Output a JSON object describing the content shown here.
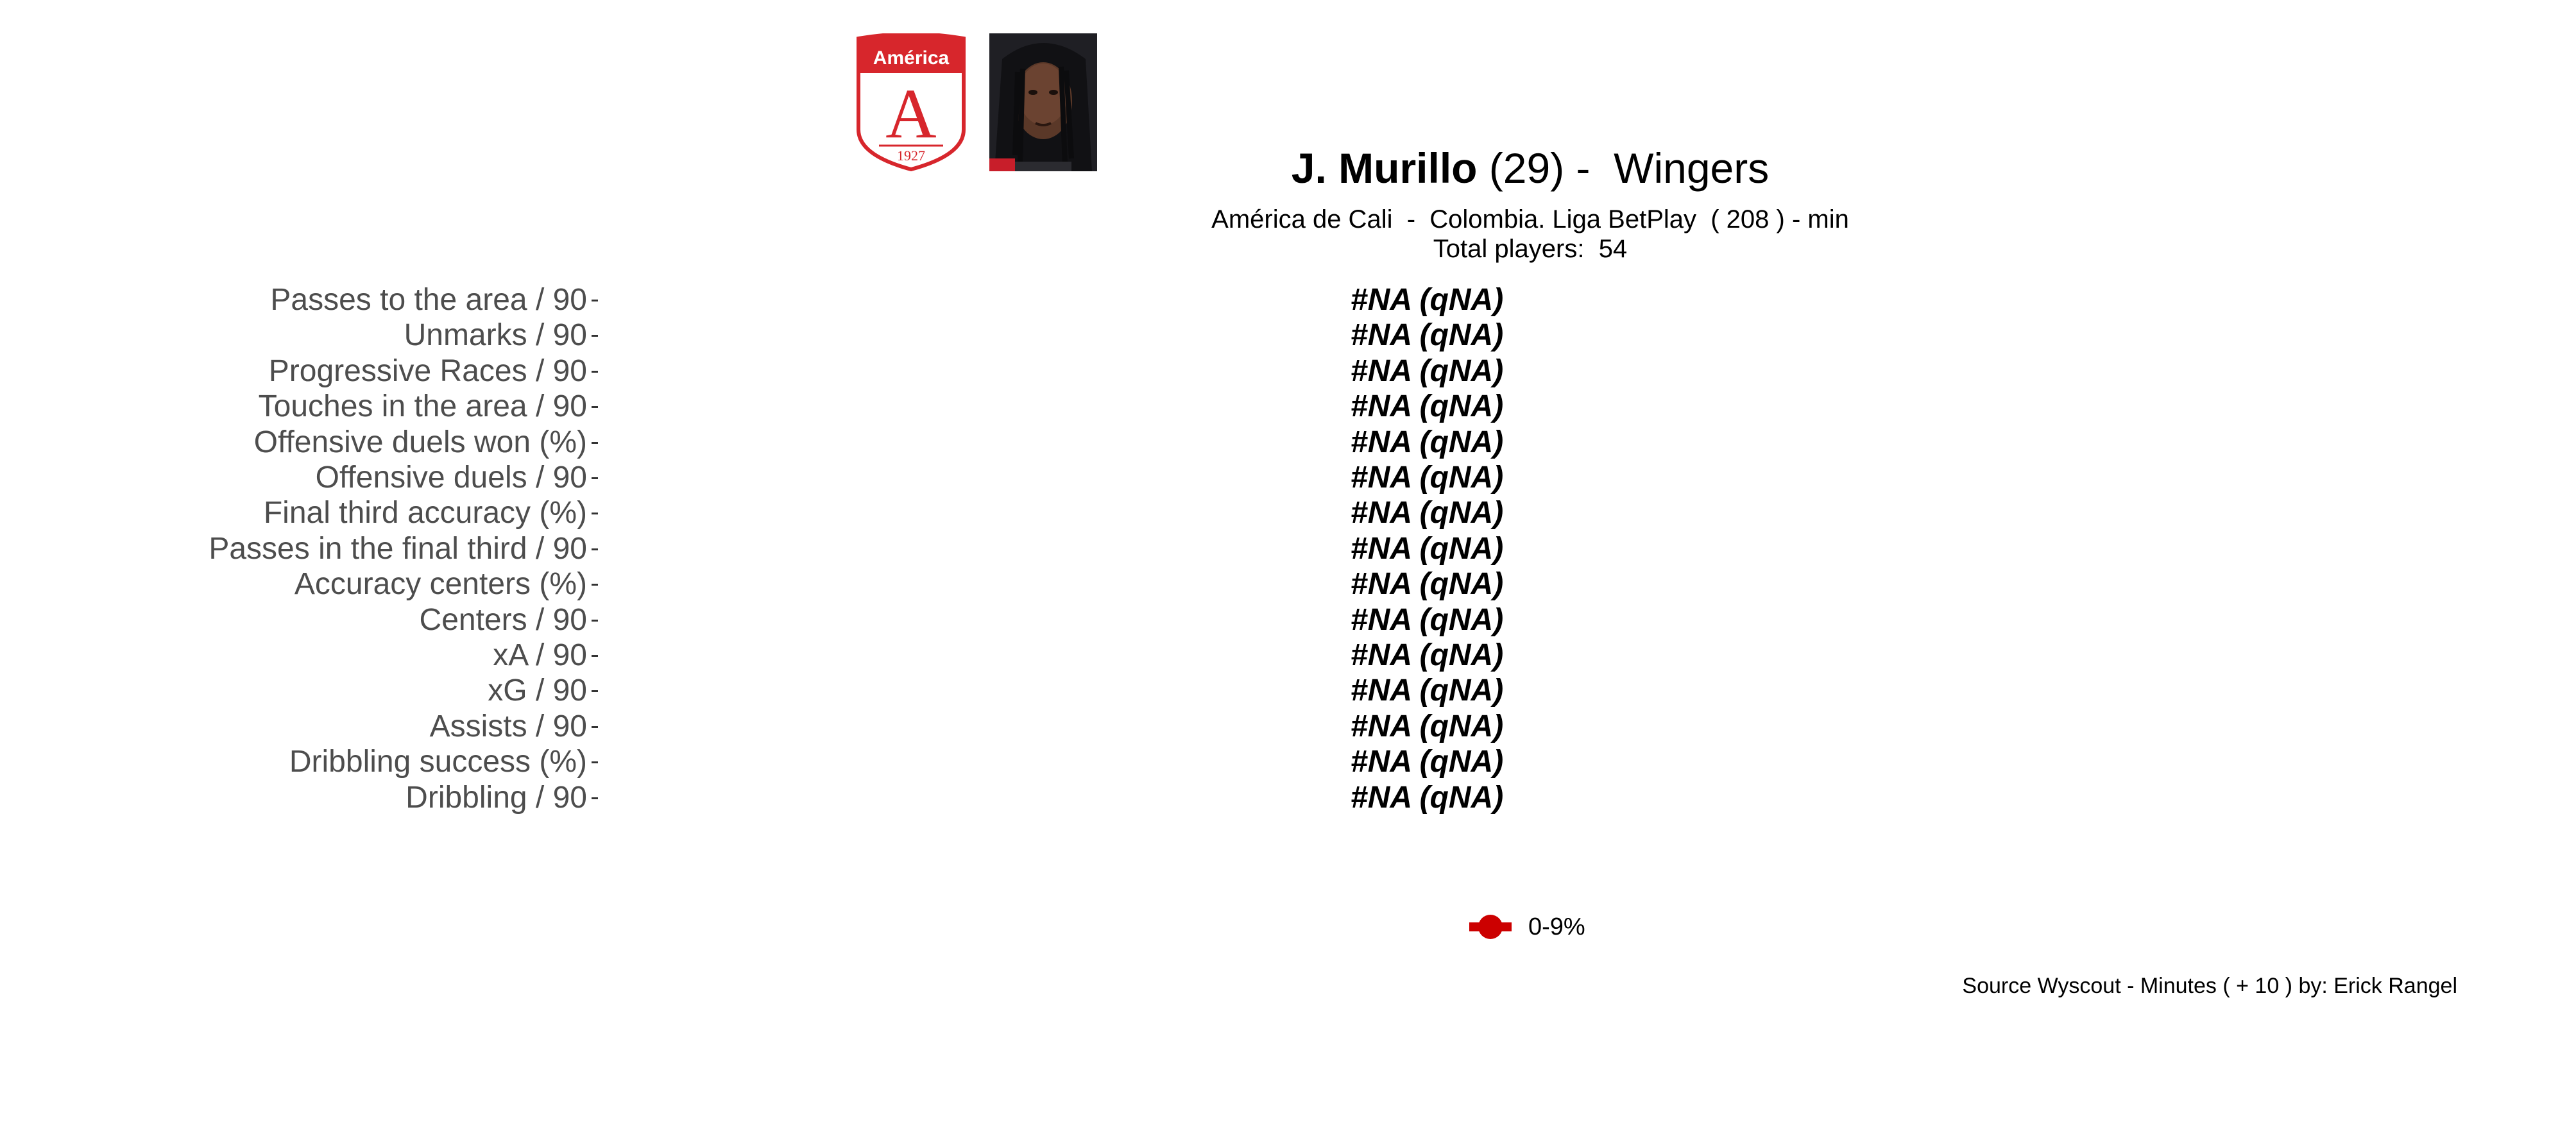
{
  "header": {
    "player_name": "J. Murillo",
    "title_rest": " (29) -  Wingers",
    "subtitle": "América de Cali  -  Colombia. Liga BetPlay  ( 208 ) - min",
    "total_players": "Total players:  54",
    "crest_text": "América",
    "crest_letter": "A",
    "crest_year": "1927",
    "crest_color": "#d7262c"
  },
  "chart_data": {
    "type": "bar",
    "title": "",
    "xlabel": "",
    "ylabel": "",
    "categories": [
      "Passes to the area / 90",
      "Unmarks / 90",
      "Progressive Races / 90",
      "Touches in the area / 90",
      "Offensive duels won (%)",
      "Offensive duels / 90",
      "Final third accuracy (%)",
      "Passes in the final third / 90",
      "Accuracy centers (%)",
      "Centers / 90",
      "xA / 90",
      "xG / 90",
      "Assists / 90",
      "Dribbling success (%)",
      "Dribbling / 90"
    ],
    "value_labels": [
      "#NA (qNA)",
      "#NA (qNA)",
      "#NA (qNA)",
      "#NA (qNA)",
      "#NA (qNA)",
      "#NA (qNA)",
      "#NA (qNA)",
      "#NA (qNA)",
      "#NA (qNA)",
      "#NA (qNA)",
      "#NA (qNA)",
      "#NA (qNA)",
      "#NA (qNA)",
      "#NA (qNA)",
      "#NA (qNA)"
    ],
    "legend": [
      {
        "label": "0-9%",
        "color": "#cc0000"
      }
    ],
    "legend_position": "bottom"
  },
  "caption": "Source Wyscout - Minutes ( + 10 ) by: Erick Rangel"
}
